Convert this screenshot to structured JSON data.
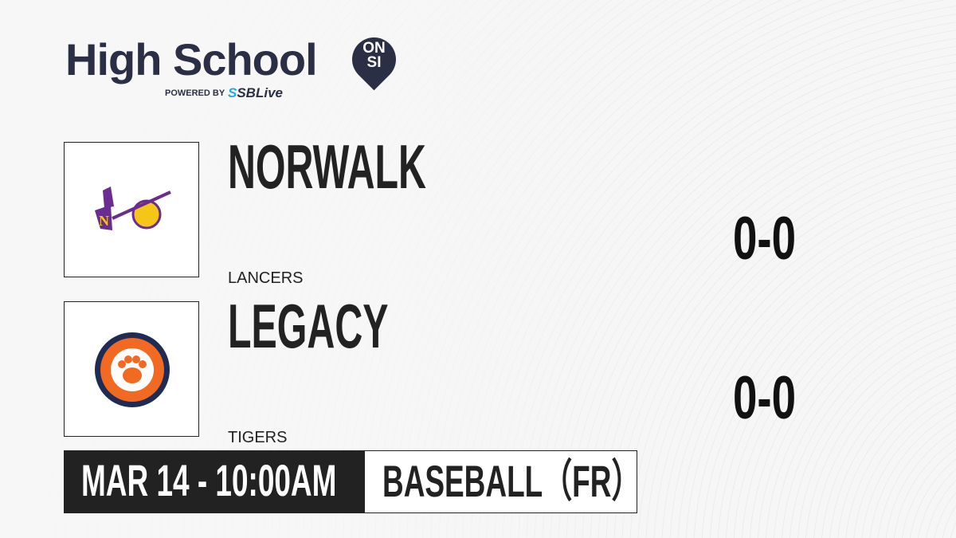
{
  "brand": {
    "title": "High School",
    "badge_line1": "ON",
    "badge_line2": "SI",
    "powered_by": "POWERED BY",
    "partner_prefix": "S",
    "partner": "SBLive",
    "accent": "#1fa9e1",
    "navy": "#2b2f45"
  },
  "teams": [
    {
      "name": "NORWALK",
      "mascot": "LANCERS",
      "score": "0-0",
      "logo": "lancer-knight-logo",
      "color": "#6b2c91"
    },
    {
      "name": "LEGACY",
      "mascot": "TIGERS",
      "score": "0-0",
      "logo": "legacy-tigers-paw-logo",
      "color": "#f26a21"
    }
  ],
  "game": {
    "datetime": "MAR 14 - 10:00AM",
    "sport": "BASEBALL（FR）"
  }
}
